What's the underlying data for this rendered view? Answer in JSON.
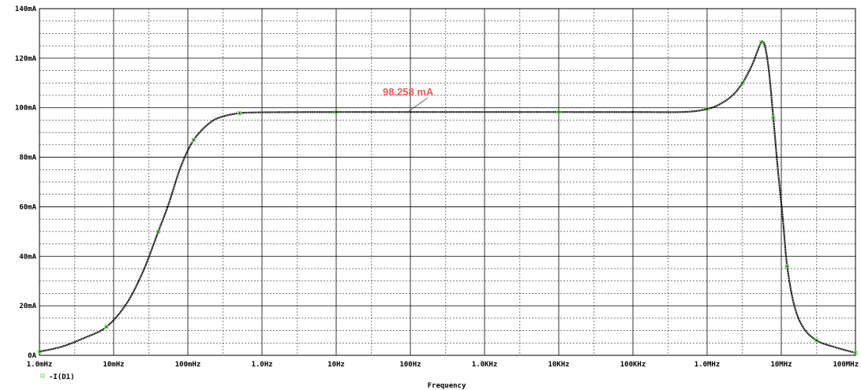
{
  "chart_data": {
    "type": "line",
    "title": "",
    "xlabel": "Frequency",
    "ylabel": "",
    "x_scale": "log",
    "x_unit": "Hz",
    "xlim": [
      0.001,
      100000000
    ],
    "ylim": [
      0,
      140
    ],
    "y_unit": "mA",
    "grid": true,
    "legend_position": "bottom-left",
    "x_ticks": [
      {
        "value": 0.001,
        "label": "1.0mHz"
      },
      {
        "value": 0.01,
        "label": "10mHz"
      },
      {
        "value": 0.1,
        "label": "100mHz"
      },
      {
        "value": 1,
        "label": "1.0Hz"
      },
      {
        "value": 10,
        "label": "10Hz"
      },
      {
        "value": 100,
        "label": "100Hz"
      },
      {
        "value": 1000,
        "label": "1.0KHz"
      },
      {
        "value": 10000,
        "label": "10KHz"
      },
      {
        "value": 100000,
        "label": "100KHz"
      },
      {
        "value": 1000000,
        "label": "1.0MHz"
      },
      {
        "value": 10000000,
        "label": "10MHz"
      },
      {
        "value": 100000000,
        "label": "100MHz"
      }
    ],
    "y_ticks": [
      {
        "value": 0,
        "label": "0A"
      },
      {
        "value": 20,
        "label": "20mA"
      },
      {
        "value": 40,
        "label": "40mA"
      },
      {
        "value": 60,
        "label": "60mA"
      },
      {
        "value": 80,
        "label": "80mA"
      },
      {
        "value": 100,
        "label": "100mA"
      },
      {
        "value": 120,
        "label": "120mA"
      },
      {
        "value": 140,
        "label": "140mA"
      }
    ],
    "series": [
      {
        "name": "-I(D1)",
        "line_color": "#000000",
        "marker_color": "#6fdc5a",
        "marker": "square",
        "x": [
          0.001,
          0.002,
          0.004,
          0.008,
          0.015,
          0.025,
          0.04,
          0.055,
          0.08,
          0.12,
          0.2,
          0.3,
          0.5,
          0.85,
          2,
          10,
          100,
          1000,
          10000,
          100000,
          500000,
          1000000,
          1500000,
          2200000,
          3000000,
          4000000,
          4800000,
          5400000,
          6000000,
          6800000,
          7800000,
          9000000,
          10500000,
          12000000,
          15000000,
          20000000,
          30000000,
          50000000,
          100000000
        ],
        "y": [
          1.5,
          3.5,
          7,
          11.5,
          21,
          34,
          50,
          61,
          76,
          87,
          94,
          96.5,
          97.8,
          98.1,
          98.2,
          98.25,
          98.25,
          98.25,
          98.25,
          98.25,
          98.3,
          99.5,
          101.5,
          105,
          110,
          117,
          123,
          126.5,
          125,
          115,
          96,
          75,
          55,
          36,
          20,
          11,
          6,
          3.5,
          1
        ]
      }
    ],
    "annotations": [
      {
        "text": "98.258 mA",
        "x": 100,
        "y": 98.258,
        "color": "#f25c5c"
      }
    ]
  }
}
